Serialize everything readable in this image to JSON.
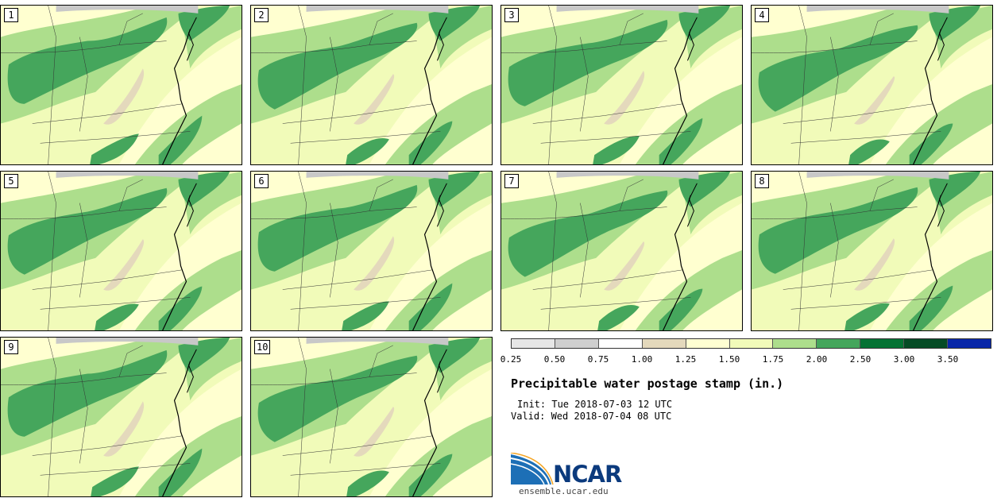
{
  "panels": [
    "1",
    "2",
    "3",
    "4",
    "5",
    "6",
    "7",
    "8",
    "9",
    "10"
  ],
  "colorbar": {
    "ticks": [
      "0.25",
      "0.50",
      "0.75",
      "1.00",
      "1.25",
      "1.50",
      "1.75",
      "2.00",
      "2.50",
      "3.00",
      "3.50"
    ],
    "colors": [
      "#e6e6e6",
      "#cfcfcf",
      "#ffffff",
      "#e4d9bc",
      "#ffffd2",
      "#f1fbb9",
      "#adde8c",
      "#45a65c",
      "#047233",
      "#054b25",
      "#0927a8"
    ]
  },
  "title": "Precipitable water postage stamp (in.)",
  "init": "Init: Tue 2018-07-03 12 UTC",
  "valid": "Valid: Wed 2018-07-04 08 UTC",
  "logo": {
    "text": "NCAR",
    "url": "ensemble.ucar.edu"
  },
  "field_colors": {
    "light": "#ffffd0",
    "pale": "#f1fbb9",
    "mid": "#adde8c",
    "dark": "#45a65c",
    "tan": "#e4d9bc",
    "gray": "#c8c8c8"
  }
}
